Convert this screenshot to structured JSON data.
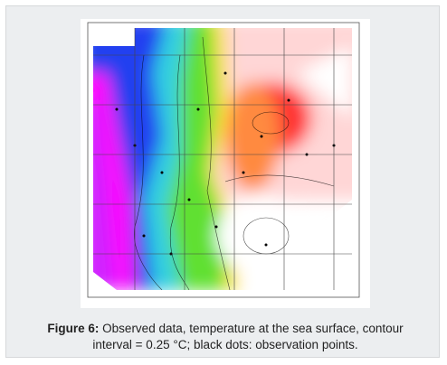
{
  "figure": {
    "label": "Figure 6:",
    "caption": "Observed data, temperature at the sea surface, contour interval = 0.25 °C; black dots: observation points."
  }
}
